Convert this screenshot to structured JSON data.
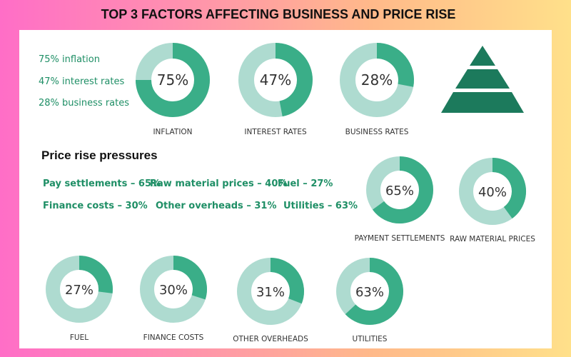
{
  "title": "TOP 3 FACTORS AFFECTING BUSINESS AND PRICE RISE",
  "legend": [
    {
      "value": "75%",
      "text": "inflation"
    },
    {
      "value": "47%",
      "text": "interest rates"
    },
    {
      "value": "28%",
      "text": "business rates"
    }
  ],
  "section_heading": "Price rise pressures",
  "pressures": [
    {
      "bold": "Pay",
      "rest": " settlements – 65%"
    },
    {
      "bold": "Raw material",
      "rest": " prices – 40%"
    },
    {
      "bold": "Fuel",
      "rest": " – 27%"
    },
    {
      "bold": "Finance",
      "rest": " costs – 30%"
    },
    {
      "bold": "Other",
      "rest": " overheads – 31%"
    },
    {
      "bold": "Utilities",
      "rest": " – 63%"
    }
  ],
  "colors": {
    "accent": "#3aae88",
    "track": "#aedbd0",
    "pyramid": "#1c7a5c",
    "legend_text": "#1f8f66"
  },
  "chart_data": [
    {
      "type": "pie",
      "category": "INFLATION",
      "value": 75,
      "label": "75%"
    },
    {
      "type": "pie",
      "category": "INTEREST RATES",
      "value": 47,
      "label": "47%"
    },
    {
      "type": "pie",
      "category": "BUSINESS RATES",
      "value": 28,
      "label": "28%"
    },
    {
      "type": "pie",
      "category": "PAYMENT SETTLEMENTS",
      "value": 65,
      "label": "65%"
    },
    {
      "type": "pie",
      "category": "RAW MATERIAL PRICES",
      "value": 40,
      "label": "40%"
    },
    {
      "type": "pie",
      "category": "FUEL",
      "value": 27,
      "label": "27%"
    },
    {
      "type": "pie",
      "category": "FINANCE COSTS",
      "value": 30,
      "label": "30%"
    },
    {
      "type": "pie",
      "category": "OTHER OVERHEADS",
      "value": 31,
      "label": "31%"
    },
    {
      "type": "pie",
      "category": "UTILITIES",
      "value": 63,
      "label": "63%"
    }
  ]
}
